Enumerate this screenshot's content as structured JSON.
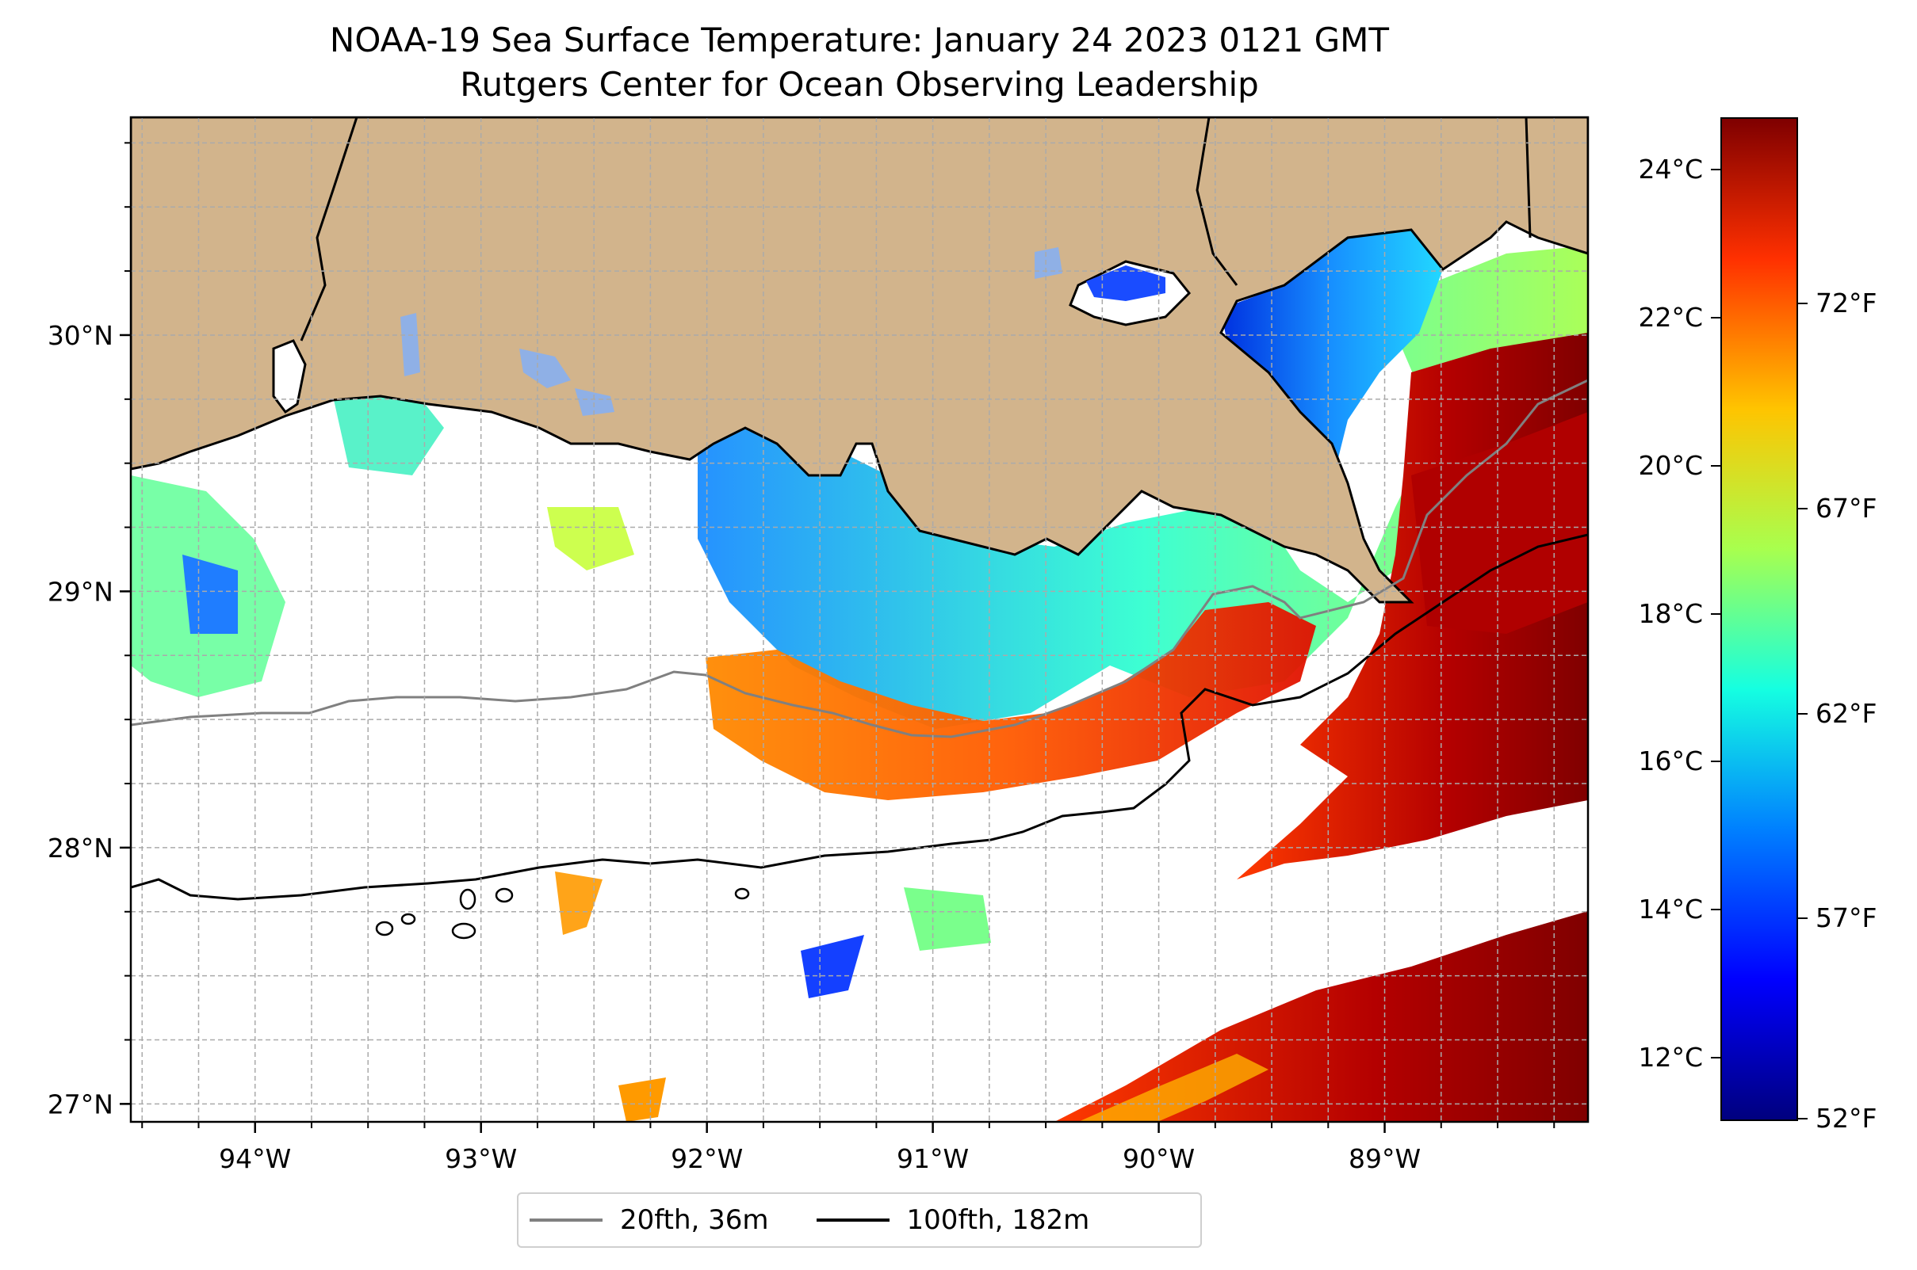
{
  "title": {
    "line1": "NOAA-19 Sea Surface Temperature: January 24 2023 0121 GMT",
    "line2": "Rutgers Center for Ocean Observing Leadership"
  },
  "map": {
    "lon_range": [
      -94.55,
      -88.1
    ],
    "lat_range": [
      26.93,
      30.85
    ],
    "land_color": "#d2b48c",
    "gridlines": true,
    "lon_ticks": [
      {
        "value": -94,
        "label": "94°W"
      },
      {
        "value": -93,
        "label": "93°W"
      },
      {
        "value": -92,
        "label": "92°W"
      },
      {
        "value": -91,
        "label": "91°W"
      },
      {
        "value": -90,
        "label": "90°W"
      },
      {
        "value": -89,
        "label": "89°W"
      }
    ],
    "lat_ticks": [
      {
        "value": 30,
        "label": "30°N"
      },
      {
        "value": 29,
        "label": "29°N"
      },
      {
        "value": 28,
        "label": "28°N"
      },
      {
        "value": 27,
        "label": "27°N"
      }
    ]
  },
  "legend": {
    "items": [
      {
        "label": "20fth, 36m",
        "color": "#808080"
      },
      {
        "label": "100fth, 182m",
        "color": "#000000"
      }
    ]
  },
  "colorbar": {
    "colormap": "jet",
    "celsius_labels": [
      {
        "value": 24,
        "label": "24°C"
      },
      {
        "value": 22,
        "label": "22°C"
      },
      {
        "value": 20,
        "label": "20°C"
      },
      {
        "value": 18,
        "label": "18°C"
      },
      {
        "value": 16,
        "label": "16°C"
      },
      {
        "value": 14,
        "label": "14°C"
      },
      {
        "value": 12,
        "label": "12°C"
      }
    ],
    "fahrenheit_labels": [
      {
        "value": 72,
        "label": "72°F"
      },
      {
        "value": 67,
        "label": "67°F"
      },
      {
        "value": 62,
        "label": "62°F"
      },
      {
        "value": 57,
        "label": "57°F"
      },
      {
        "value": 52,
        "label": "52°F"
      }
    ]
  }
}
